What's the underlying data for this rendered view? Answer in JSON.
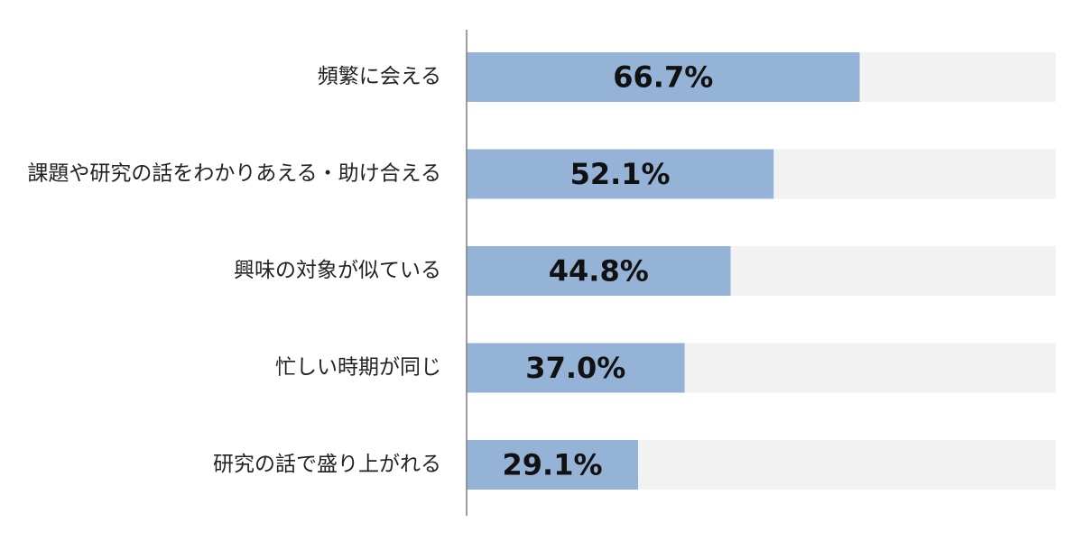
{
  "chart_data": {
    "type": "bar",
    "orientation": "horizontal",
    "categories": [
      "頻繁に会える",
      "課題や研究の話をわかりあえる・助け合える",
      "興味の対象が似ている",
      "忙しい時期が同じ",
      "研究の話で盛り上がれる"
    ],
    "values": [
      66.7,
      52.1,
      44.8,
      37.0,
      29.1
    ],
    "value_labels": [
      "66.7%",
      "52.1%",
      "44.8%",
      "37.0%",
      "29.1%"
    ],
    "xlim": [
      0,
      100
    ],
    "unit": "%",
    "grid": false,
    "legend": "none",
    "colors": {
      "bar": "#95b3d7",
      "track": "#f2f2f2",
      "axis": "#7f7f7f",
      "label": "#222222",
      "value": "#111111"
    }
  }
}
